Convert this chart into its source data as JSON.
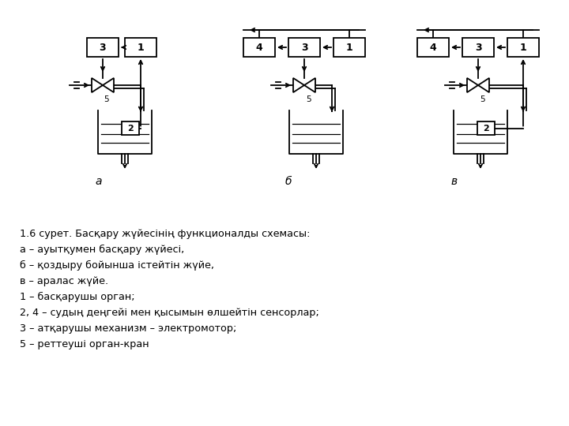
{
  "title_line": "1.6 сурет. Басқару жүйесінің функционалды схемасы:",
  "lines": [
    "а – ауытқумен басқару жүйесі,",
    "б – қоздыру бойынша істейтін жүйе,",
    "в – аралас жүйе.",
    "1 – басқарушы орган;",
    "2, 4 – судың деңгейі мен қысымын өлшейтін сенсорлар;",
    "3 – атқарушы механизм – электромотор;",
    "5 – реттеуші орган-кран"
  ],
  "bg_color": "#ffffff",
  "text_color": "#000000",
  "diagram_color": "#000000"
}
